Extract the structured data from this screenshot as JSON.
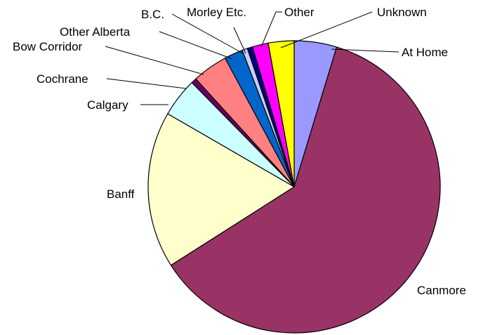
{
  "chart_data": {
    "type": "pie",
    "title": "",
    "start_angle_deg": 0,
    "direction": "clockwise",
    "legend": "none",
    "slices": [
      {
        "label": "At Home",
        "value": 4.8,
        "color": "#9999ff"
      },
      {
        "label": "Canmore",
        "value": 62.5,
        "color": "#993366"
      },
      {
        "label": "Banff",
        "value": 17.7,
        "color": "#ffffcc"
      },
      {
        "label": "Calgary",
        "value": 4.4,
        "color": "#ccffff"
      },
      {
        "label": "Cochrane",
        "value": 0.6,
        "color": "#660066"
      },
      {
        "label": "Bow Corridor",
        "value": 4.0,
        "color": "#ff8080"
      },
      {
        "label": "Other Alberta",
        "value": 2.1,
        "color": "#0066cc"
      },
      {
        "label": "B.C.",
        "value": 0.6,
        "color": "#ccccff"
      },
      {
        "label": "Morley Etc.",
        "value": 0.6,
        "color": "#000080"
      },
      {
        "label": "Other",
        "value": 1.8,
        "color": "#ff00ff"
      },
      {
        "label": "Unknown",
        "value": 2.9,
        "color": "#ffff00"
      }
    ]
  }
}
